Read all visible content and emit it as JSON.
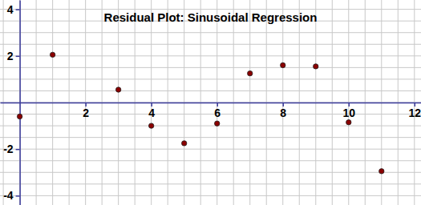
{
  "chart_data": {
    "type": "scatter",
    "title": "Residual Plot: Sinusoidal Regression",
    "x": [
      0,
      1,
      3,
      4,
      5,
      6,
      7,
      8,
      9,
      10,
      11
    ],
    "values": [
      -0.6,
      2.05,
      0.55,
      -1.0,
      -1.75,
      -0.9,
      1.25,
      1.6,
      1.55,
      -0.85,
      -2.95
    ],
    "color": "#8b0000",
    "marker": "circle",
    "xlim": [
      -0.6,
      12.2
    ],
    "ylim": [
      -4.4,
      4.4
    ],
    "xticks": [
      2,
      4,
      6,
      8,
      10,
      12
    ],
    "yticks": [
      -4,
      -2,
      2,
      4
    ],
    "grid": true
  }
}
